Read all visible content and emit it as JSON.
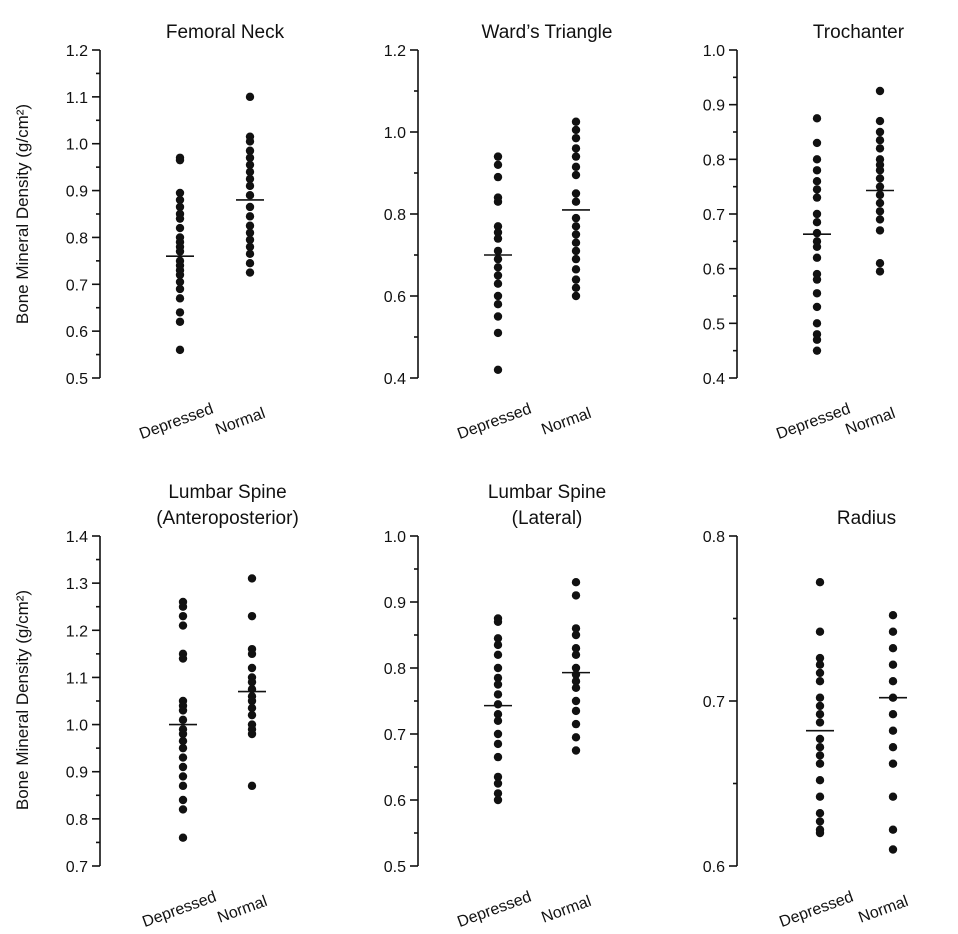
{
  "ylabel": "Bone Mineral Density (g/cm²)",
  "colors": {
    "ink": "#111111",
    "background": "#ffffff"
  },
  "chart_data": [
    {
      "type": "scatter",
      "title": "Femoral Neck",
      "title_lines": [
        "Femoral Neck"
      ],
      "ylabel": "Bone Mineral Density (g/cm²)",
      "ylim": [
        0.5,
        1.2
      ],
      "yticks": [
        "0.5",
        "0.6",
        "0.7",
        "0.8",
        "0.9",
        "1.0",
        "1.1",
        "1.2"
      ],
      "categories": [
        "Depressed",
        "Normal"
      ],
      "series": [
        {
          "category": "Depressed",
          "mean": 0.76,
          "values": [
            0.97,
            0.965,
            0.895,
            0.88,
            0.865,
            0.85,
            0.84,
            0.82,
            0.8,
            0.79,
            0.78,
            0.77,
            0.75,
            0.74,
            0.73,
            0.72,
            0.705,
            0.69,
            0.67,
            0.64,
            0.62,
            0.56
          ]
        },
        {
          "category": "Normal",
          "mean": 0.88,
          "values": [
            1.1,
            1.015,
            1.005,
            0.985,
            0.97,
            0.955,
            0.94,
            0.925,
            0.91,
            0.89,
            0.865,
            0.845,
            0.825,
            0.81,
            0.795,
            0.78,
            0.765,
            0.745,
            0.725
          ]
        }
      ]
    },
    {
      "type": "scatter",
      "title": "Ward’s Triangle",
      "title_lines": [
        "Ward’s Triangle"
      ],
      "ylabel": "",
      "ylim": [
        0.4,
        1.2
      ],
      "yticks": [
        "0.4",
        "0.6",
        "0.8",
        "1.0",
        "1.2"
      ],
      "categories": [
        "Depressed",
        "Normal"
      ],
      "series": [
        {
          "category": "Depressed",
          "mean": 0.7,
          "values": [
            0.94,
            0.92,
            0.89,
            0.84,
            0.83,
            0.77,
            0.755,
            0.74,
            0.71,
            0.69,
            0.67,
            0.65,
            0.63,
            0.6,
            0.58,
            0.55,
            0.51,
            0.42
          ]
        },
        {
          "category": "Normal",
          "mean": 0.81,
          "values": [
            1.025,
            1.005,
            0.985,
            0.96,
            0.94,
            0.915,
            0.895,
            0.85,
            0.83,
            0.79,
            0.77,
            0.75,
            0.73,
            0.71,
            0.69,
            0.665,
            0.64,
            0.62,
            0.6
          ]
        }
      ]
    },
    {
      "type": "scatter",
      "title": "Trochanter",
      "title_lines": [
        "Trochanter"
      ],
      "ylabel": "",
      "ylim": [
        0.4,
        1.0
      ],
      "yticks": [
        "0.4",
        "0.5",
        "0.6",
        "0.7",
        "0.8",
        "0.9",
        "1.0"
      ],
      "categories": [
        "Depressed",
        "Normal"
      ],
      "series": [
        {
          "category": "Depressed",
          "mean": 0.663,
          "values": [
            0.875,
            0.83,
            0.8,
            0.78,
            0.76,
            0.745,
            0.73,
            0.7,
            0.685,
            0.665,
            0.65,
            0.64,
            0.62,
            0.59,
            0.58,
            0.555,
            0.53,
            0.5,
            0.48,
            0.47,
            0.45
          ]
        },
        {
          "category": "Normal",
          "mean": 0.743,
          "values": [
            0.925,
            0.87,
            0.85,
            0.835,
            0.82,
            0.8,
            0.79,
            0.78,
            0.765,
            0.75,
            0.735,
            0.72,
            0.705,
            0.69,
            0.67,
            0.61,
            0.595
          ]
        }
      ]
    },
    {
      "type": "scatter",
      "title": "Lumbar Spine (Anteroposterior)",
      "title_lines": [
        "Lumbar Spine",
        "(Anteroposterior)"
      ],
      "ylabel": "Bone Mineral Density (g/cm²)",
      "ylim": [
        0.7,
        1.4
      ],
      "yticks": [
        "0.7",
        "0.8",
        "0.9",
        "1.0",
        "1.1",
        "1.2",
        "1.3",
        "1.4"
      ],
      "categories": [
        "Depressed",
        "Normal"
      ],
      "series": [
        {
          "category": "Depressed",
          "mean": 1.0,
          "values": [
            1.26,
            1.25,
            1.23,
            1.21,
            1.15,
            1.14,
            1.05,
            1.04,
            1.03,
            1.01,
            0.99,
            0.98,
            0.965,
            0.95,
            0.93,
            0.91,
            0.89,
            0.87,
            0.84,
            0.82,
            0.76
          ]
        },
        {
          "category": "Normal",
          "mean": 1.07,
          "values": [
            1.31,
            1.23,
            1.16,
            1.15,
            1.12,
            1.1,
            1.09,
            1.075,
            1.06,
            1.05,
            1.035,
            1.02,
            1.0,
            0.99,
            0.98,
            0.87
          ]
        }
      ]
    },
    {
      "type": "scatter",
      "title": "Lumbar Spine (Lateral)",
      "title_lines": [
        "Lumbar Spine",
        "(Lateral)"
      ],
      "ylabel": "",
      "ylim": [
        0.5,
        1.0
      ],
      "yticks": [
        "0.5",
        "0.6",
        "0.7",
        "0.8",
        "0.9",
        "1.0"
      ],
      "categories": [
        "Depressed",
        "Normal"
      ],
      "series": [
        {
          "category": "Depressed",
          "mean": 0.743,
          "values": [
            0.875,
            0.87,
            0.845,
            0.835,
            0.82,
            0.8,
            0.785,
            0.775,
            0.76,
            0.745,
            0.73,
            0.72,
            0.7,
            0.685,
            0.665,
            0.635,
            0.625,
            0.61,
            0.6
          ]
        },
        {
          "category": "Normal",
          "mean": 0.793,
          "values": [
            0.93,
            0.91,
            0.86,
            0.85,
            0.83,
            0.82,
            0.8,
            0.79,
            0.78,
            0.77,
            0.75,
            0.735,
            0.715,
            0.695,
            0.675
          ]
        }
      ]
    },
    {
      "type": "scatter",
      "title": "Radius",
      "title_lines": [
        "Radius"
      ],
      "ylabel": "",
      "ylim": [
        0.6,
        0.8
      ],
      "yticks": [
        "0.6",
        "0.7",
        "0.8"
      ],
      "categories": [
        "Depressed",
        "Normal"
      ],
      "series": [
        {
          "category": "Depressed",
          "mean": 0.682,
          "values": [
            0.772,
            0.742,
            0.726,
            0.722,
            0.717,
            0.712,
            0.702,
            0.697,
            0.692,
            0.687,
            0.677,
            0.672,
            0.667,
            0.662,
            0.652,
            0.642,
            0.632,
            0.627,
            0.622,
            0.62
          ]
        },
        {
          "category": "Normal",
          "mean": 0.702,
          "values": [
            0.752,
            0.742,
            0.732,
            0.722,
            0.712,
            0.702,
            0.692,
            0.682,
            0.672,
            0.662,
            0.642,
            0.622,
            0.61
          ]
        }
      ]
    }
  ]
}
